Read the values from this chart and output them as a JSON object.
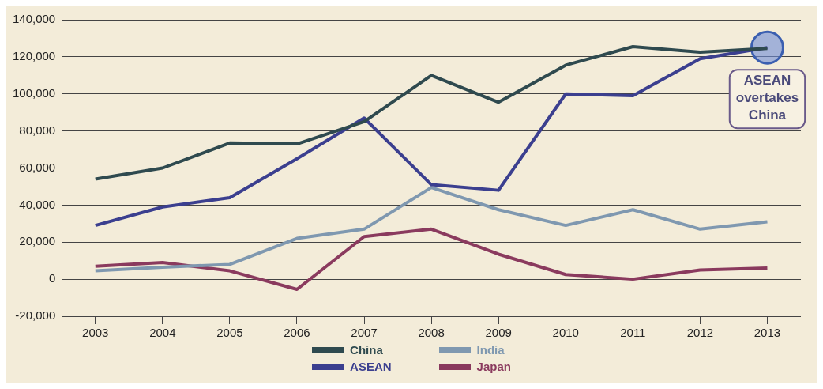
{
  "chart_data": {
    "type": "line",
    "categories": [
      "2003",
      "2004",
      "2005",
      "2006",
      "2007",
      "2008",
      "2009",
      "2010",
      "2011",
      "2012",
      "2013"
    ],
    "series": [
      {
        "name": "China",
        "color": "#2f4a4f",
        "values": [
          54000,
          60000,
          73500,
          73000,
          85000,
          110000,
          95500,
          115500,
          125500,
          122500,
          124500
        ]
      },
      {
        "name": "ASEAN",
        "color": "#3b3f8f",
        "values": [
          29000,
          39000,
          44000,
          65000,
          87000,
          51000,
          48000,
          100000,
          99000,
          119000,
          125000
        ]
      },
      {
        "name": "India",
        "color": "#7f98b0",
        "values": [
          4500,
          6500,
          8000,
          22000,
          27000,
          49500,
          37500,
          29000,
          37500,
          27000,
          31000
        ]
      },
      {
        "name": "Japan",
        "color": "#8a3a5e",
        "values": [
          7000,
          9000,
          4500,
          -5500,
          23000,
          27000,
          13500,
          2500,
          0,
          5000,
          6000
        ]
      }
    ],
    "ylim": [
      -20000,
      140000
    ],
    "yticks": [
      {
        "value": -20000,
        "label": "-20,000"
      },
      0,
      {
        "value": 20000,
        "label": "20,000"
      },
      {
        "value": 40000,
        "label": "40,000"
      },
      {
        "value": 60000,
        "label": "60,000"
      },
      {
        "value": 80000,
        "label": "80,000"
      },
      {
        "value": 100000,
        "label": "100,000"
      },
      {
        "value": 120000,
        "label": "120,000"
      },
      {
        "value": 140000,
        "label": "140,000"
      }
    ],
    "grid": "y",
    "legend": "bottom",
    "marker": "none",
    "line_style": "solid",
    "annotations": [
      {
        "text": "ASEAN overtakes China",
        "x": "2013",
        "y": 125000
      }
    ]
  }
}
